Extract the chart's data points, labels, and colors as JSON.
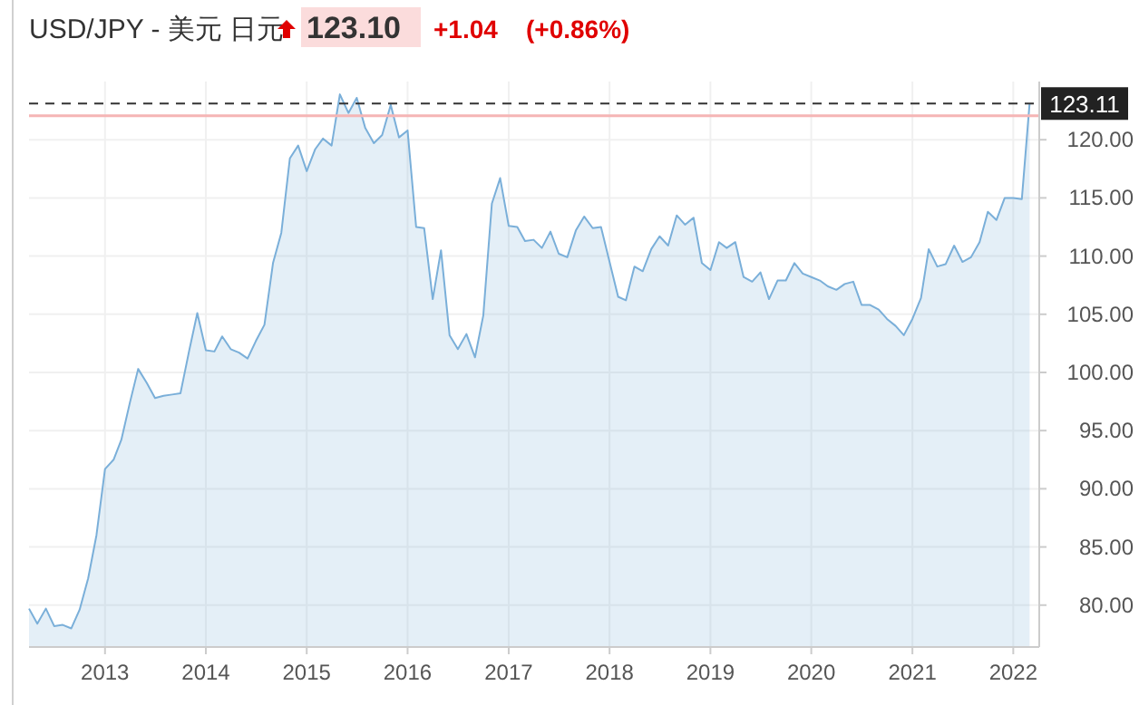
{
  "chart_data": {
    "type": "area",
    "title": "USD/JPY - 美元 日元",
    "annotations": [
      "123.10",
      "+1.04",
      "(+0.86%)"
    ],
    "x": [
      "2012-04",
      "2012-05",
      "2012-06",
      "2012-07",
      "2012-08",
      "2012-09",
      "2012-10",
      "2012-11",
      "2012-12",
      "2013-01",
      "2013-02",
      "2013-03",
      "2013-04",
      "2013-05",
      "2013-06",
      "2013-07",
      "2013-08",
      "2013-09",
      "2013-10",
      "2013-11",
      "2013-12",
      "2014-01",
      "2014-02",
      "2014-03",
      "2014-04",
      "2014-05",
      "2014-06",
      "2014-07",
      "2014-08",
      "2014-09",
      "2014-10",
      "2014-11",
      "2014-12",
      "2015-01",
      "2015-02",
      "2015-03",
      "2015-04",
      "2015-05",
      "2015-06",
      "2015-07",
      "2015-08",
      "2015-09",
      "2015-10",
      "2015-11",
      "2015-12",
      "2016-01",
      "2016-02",
      "2016-03",
      "2016-04",
      "2016-05",
      "2016-06",
      "2016-07",
      "2016-08",
      "2016-09",
      "2016-10",
      "2016-11",
      "2016-12",
      "2017-01",
      "2017-02",
      "2017-03",
      "2017-04",
      "2017-05",
      "2017-06",
      "2017-07",
      "2017-08",
      "2017-09",
      "2017-10",
      "2017-11",
      "2017-12",
      "2018-01",
      "2018-02",
      "2018-03",
      "2018-04",
      "2018-05",
      "2018-06",
      "2018-07",
      "2018-08",
      "2018-09",
      "2018-10",
      "2018-11",
      "2018-12",
      "2019-01",
      "2019-02",
      "2019-03",
      "2019-04",
      "2019-05",
      "2019-06",
      "2019-07",
      "2019-08",
      "2019-09",
      "2019-10",
      "2019-11",
      "2019-12",
      "2020-01",
      "2020-02",
      "2020-03",
      "2020-04",
      "2020-05",
      "2020-06",
      "2020-07",
      "2020-08",
      "2020-09",
      "2020-10",
      "2020-11",
      "2020-12",
      "2021-01",
      "2021-02",
      "2021-03",
      "2021-04",
      "2021-05",
      "2021-06",
      "2021-07",
      "2021-08",
      "2021-09",
      "2021-10",
      "2021-11",
      "2021-12",
      "2022-01",
      "2022-02",
      "2022-03"
    ],
    "series": [
      {
        "color": "#7aafd9",
        "values": [
          79.7,
          78.4,
          79.7,
          78.2,
          78.3,
          78.0,
          79.6,
          82.3,
          86.0,
          91.7,
          92.5,
          94.2,
          97.4,
          100.3,
          99.1,
          97.8,
          98.0,
          98.1,
          98.2,
          101.8,
          105.1,
          101.9,
          101.8,
          103.1,
          102.0,
          101.7,
          101.2,
          102.7,
          104.1,
          109.4,
          112.0,
          118.4,
          119.5,
          117.3,
          119.2,
          120.1,
          119.5,
          123.9,
          122.3,
          123.6,
          121.0,
          119.7,
          120.4,
          123.0,
          120.2,
          120.8,
          112.5,
          112.4,
          106.3,
          110.5,
          103.2,
          102.0,
          103.3,
          101.3,
          104.9,
          114.5,
          116.7,
          112.6,
          112.5,
          111.3,
          111.4,
          110.7,
          112.1,
          110.2,
          109.9,
          112.2,
          113.4,
          112.4,
          112.5,
          109.5,
          106.5,
          106.2,
          109.1,
          108.7,
          110.6,
          111.7,
          110.9,
          113.5,
          112.7,
          113.3,
          109.4,
          108.8,
          111.2,
          110.7,
          111.2,
          108.2,
          107.8,
          108.6,
          106.3,
          107.9,
          107.9,
          109.4,
          108.5,
          108.2,
          107.9,
          107.4,
          107.1,
          107.6,
          107.8,
          105.8,
          105.8,
          105.4,
          104.6,
          104.0,
          103.2,
          104.6,
          106.4,
          110.6,
          109.1,
          109.3,
          110.9,
          109.5,
          109.9,
          111.2,
          113.8,
          113.1,
          115.0,
          115.0,
          114.9,
          123.1
        ]
      }
    ],
    "xlim": [
      "2012-04-01",
      "2022-04-05"
    ],
    "xticks": [
      "2013",
      "2014",
      "2015",
      "2016",
      "2017",
      "2018",
      "2019",
      "2020",
      "2021",
      "2022"
    ],
    "ylim": [
      76.4,
      125
    ],
    "yticks": [
      {
        "value": 80,
        "label": "80.00"
      },
      {
        "value": 85,
        "label": "85.00"
      },
      {
        "value": 90,
        "label": "90.00"
      },
      {
        "value": 95,
        "label": "95.00"
      },
      {
        "value": 100,
        "label": "100.00"
      },
      {
        "value": 105,
        "label": "105.00"
      },
      {
        "value": 110,
        "label": "110.00"
      },
      {
        "value": 115,
        "label": "115.00"
      },
      {
        "value": 120,
        "label": "120.00"
      }
    ],
    "ref_lines": [
      {
        "axis": "y",
        "value": 123.11,
        "label": "123.11",
        "line_style": "dashed",
        "color": "#333333"
      },
      {
        "axis": "y",
        "value": 122.06,
        "color": "#f5b5b5",
        "line_style": "solid"
      }
    ],
    "grid": true
  }
}
